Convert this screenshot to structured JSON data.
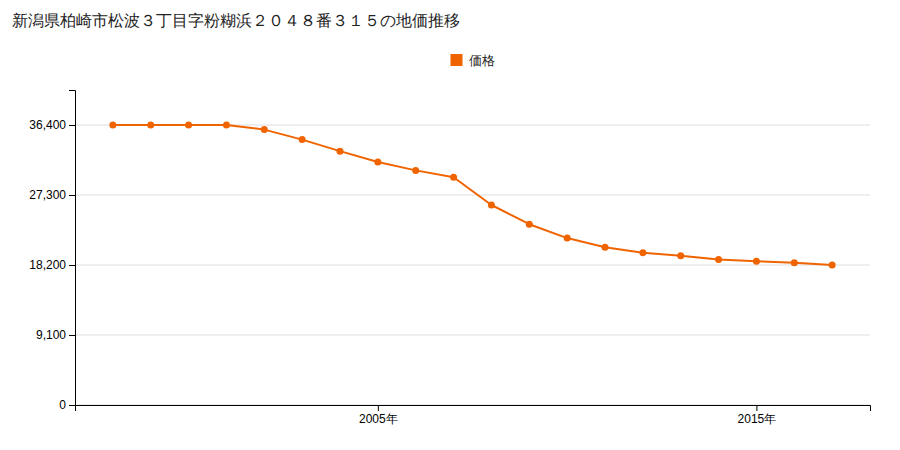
{
  "chart_data": {
    "type": "line",
    "title": "新潟県柏崎市松波３丁目字粉糊浜２０４８番３１５の地価推移",
    "x": [
      1998,
      1999,
      2000,
      2001,
      2002,
      2003,
      2004,
      2005,
      2006,
      2007,
      2008,
      2009,
      2010,
      2011,
      2012,
      2013,
      2014,
      2015,
      2016,
      2017
    ],
    "series": [
      {
        "name": "価格",
        "color": "#f06400",
        "marker": "circle",
        "values": [
          36400,
          36400,
          36400,
          36400,
          35800,
          34500,
          33000,
          31600,
          30500,
          29600,
          26000,
          23500,
          21700,
          20500,
          19800,
          19400,
          18900,
          18700,
          18500,
          18200
        ]
      }
    ],
    "xlim": [
      1997,
      2018
    ],
    "xticks": [
      {
        "value": 2005,
        "label": "2005年"
      },
      {
        "value": 2015,
        "label": "2015年"
      }
    ],
    "ylim": [
      0,
      40950
    ],
    "yticks": [
      0,
      {
        "value": 9100,
        "label": "9,100"
      },
      {
        "value": 18200,
        "label": "18,200"
      },
      {
        "value": 27300,
        "label": "27,300"
      },
      {
        "value": 36400,
        "label": "36,400"
      }
    ],
    "grid": true,
    "legend": "top"
  }
}
